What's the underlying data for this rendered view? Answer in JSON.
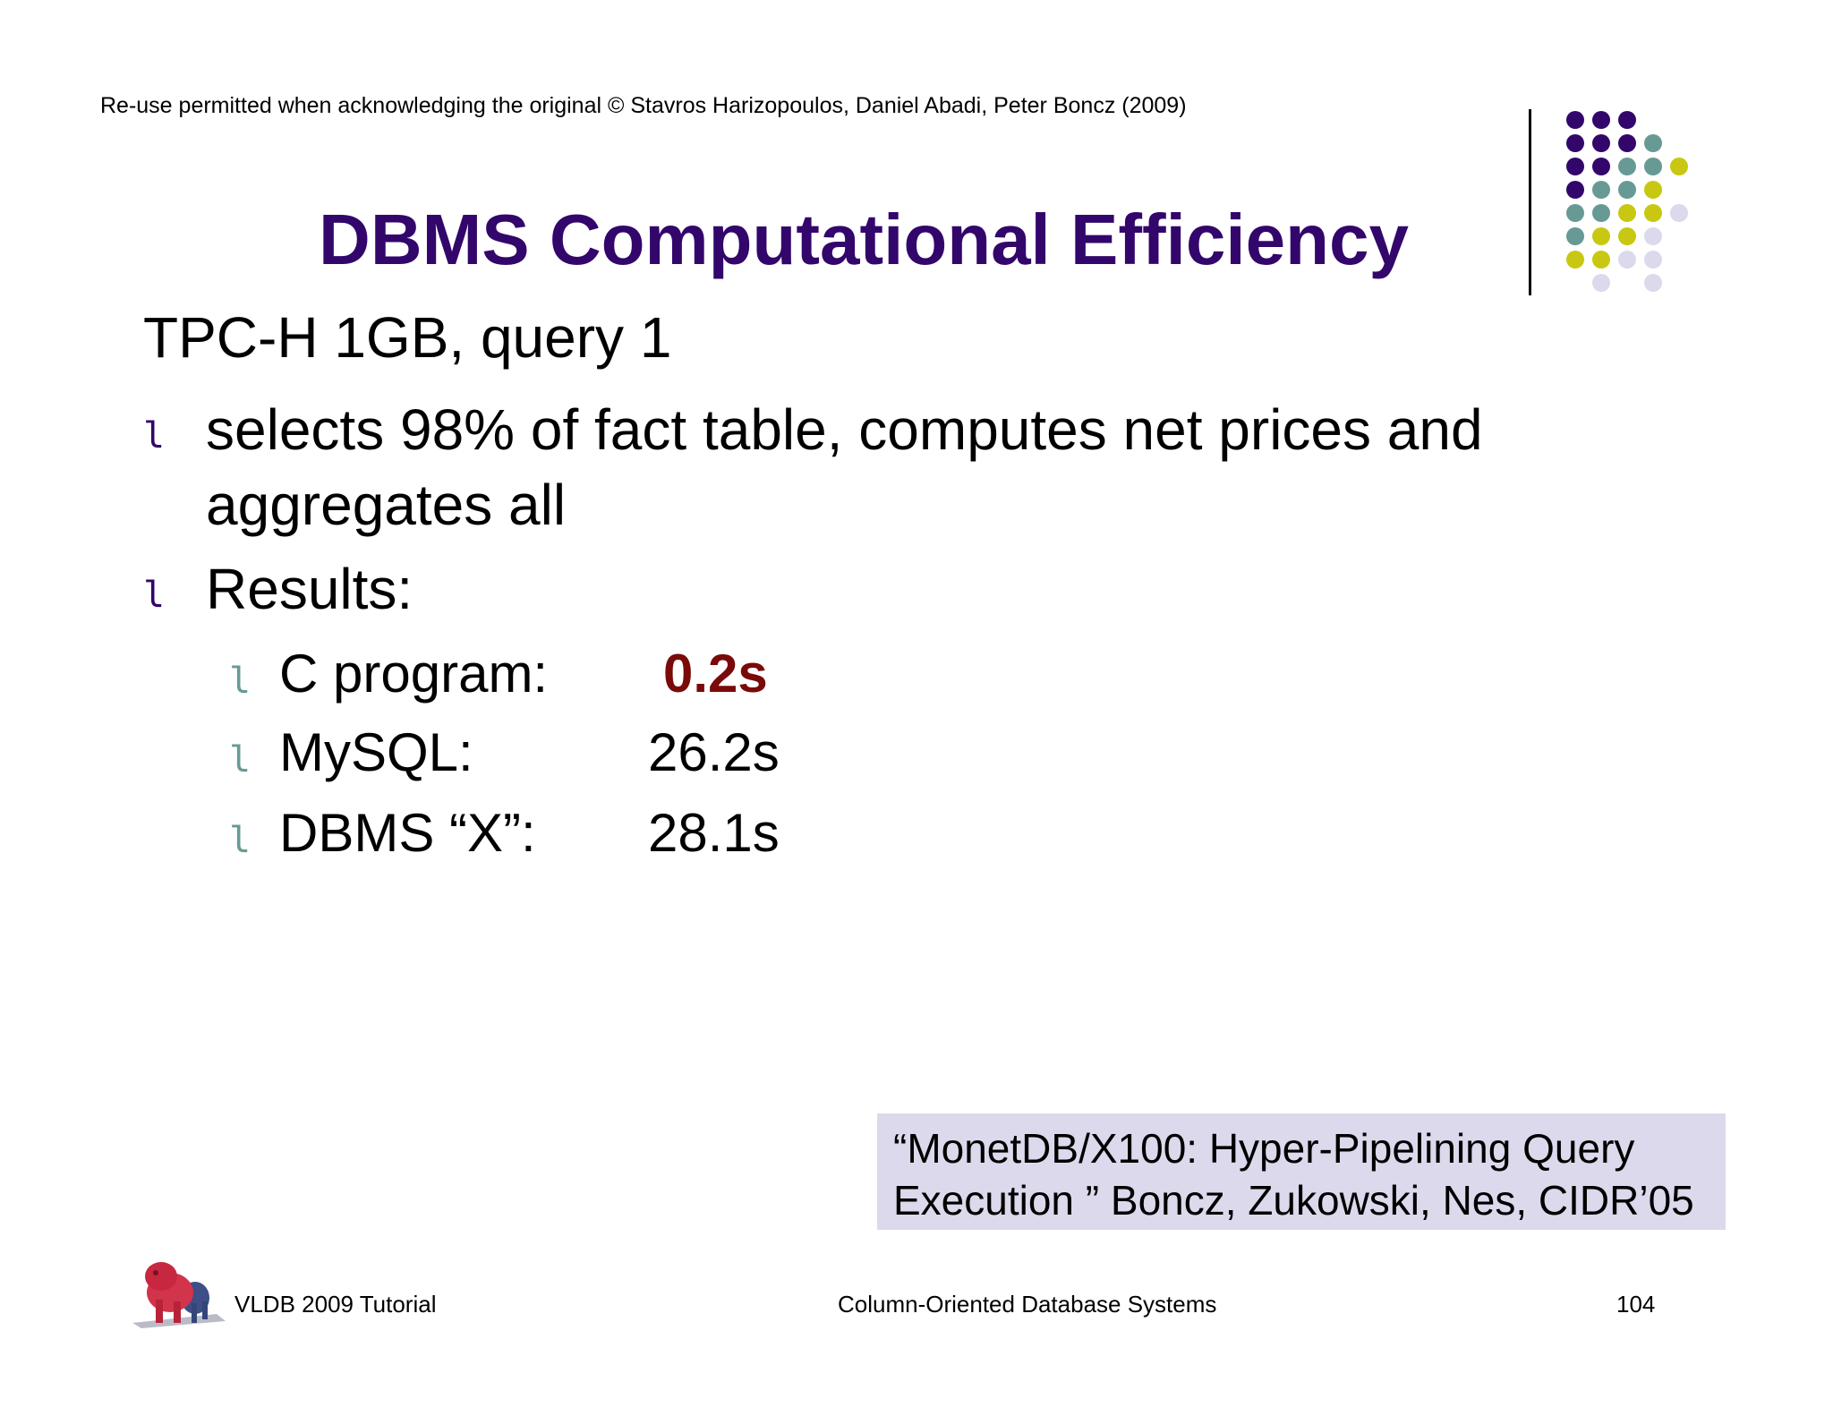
{
  "copyright": "Re-use permitted when acknowledging the original © Stavros Harizopoulos, Daniel Abadi, Peter Boncz (2009)",
  "title": "DBMS Computational Efficiency",
  "heading": "TPC-H 1GB, query 1",
  "bullets": [
    {
      "mark": "l",
      "line1": "selects 98% of fact table, computes net prices and",
      "line2": "aggregates all"
    },
    {
      "mark": "l",
      "line1": "Results:"
    }
  ],
  "results": [
    {
      "mark": "l",
      "label": "C program:",
      "value": "0.2s"
    },
    {
      "mark": "l",
      "label": "MySQL:",
      "value": "26.2s"
    },
    {
      "mark": "l",
      "label": "DBMS “X”:",
      "value": "28.1s"
    }
  ],
  "citation": {
    "line1": "“MonetDB/X100: Hyper-Pipelining Query",
    "line2": "Execution ” Boncz, Zukowski, Nes, CIDR’05"
  },
  "footer": {
    "left": "VLDB 2009 Tutorial",
    "center": "Column-Oriented Database Systems",
    "page": "104"
  },
  "colors": {
    "title": "#33066b",
    "highlight": "#7a0a0a",
    "dot_purple": "#33066b",
    "dot_teal": "#679a94",
    "dot_yellow": "#c8c812",
    "dot_lavender": "#dcd9ec",
    "citation_bg": "#dcd9ec"
  }
}
